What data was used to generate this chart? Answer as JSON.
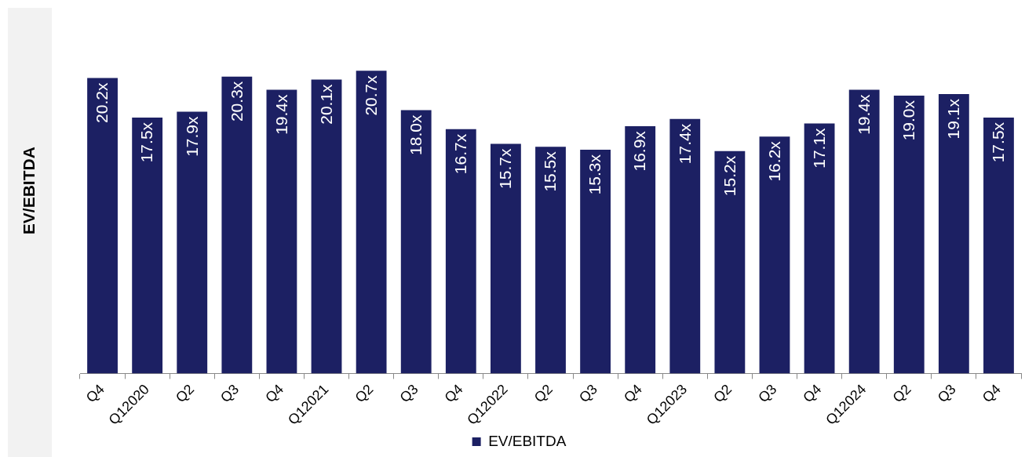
{
  "chart_data": {
    "type": "bar",
    "ylabel": "EV/EBITDA",
    "categories": [
      "Q4",
      "Q12020",
      "Q2",
      "Q3",
      "Q4",
      "Q12021",
      "Q2",
      "Q3",
      "Q4",
      "Q12022",
      "Q2",
      "Q3",
      "Q4",
      "Q12023",
      "Q2",
      "Q3",
      "Q4",
      "Q12024",
      "Q2",
      "Q3",
      "Q4"
    ],
    "series": [
      {
        "name": "EV/EBITDA",
        "color": "#1c2063",
        "values": [
          20.2,
          17.5,
          17.9,
          20.3,
          19.4,
          20.1,
          20.7,
          18.0,
          16.7,
          15.7,
          15.5,
          15.3,
          16.9,
          17.4,
          15.2,
          16.2,
          17.1,
          19.4,
          19.0,
          19.1,
          17.5
        ],
        "value_labels": [
          "20.2x",
          "17.5x",
          "17.9x",
          "20.3x",
          "19.4x",
          "20.1x",
          "20.7x",
          "18.0x",
          "16.7x",
          "15.7x",
          "15.5x",
          "15.3x",
          "16.9x",
          "17.4x",
          "15.2x",
          "16.2x",
          "17.1x",
          "19.4x",
          "19.0x",
          "19.1x",
          "17.5x"
        ]
      }
    ],
    "legend": "bottom",
    "grid": false
  }
}
